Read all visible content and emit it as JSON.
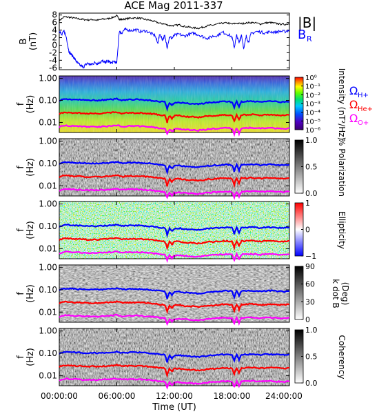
{
  "title": "ACE Mag 2011-337",
  "colors": {
    "total_field": "#000000",
    "radial_field": "#0000ff",
    "gyro_h": "#0000ff",
    "gyro_he": "#ff0000",
    "gyro_o": "#ff00ff"
  },
  "chart_data": [
    {
      "type": "line",
      "panel": "magnetic-field",
      "ylabel": "B",
      "yunit": "(nT)",
      "ylim": [
        -6.5,
        8.5
      ],
      "y_ticks": [
        "8",
        "6",
        "4",
        "2",
        "0",
        "-2",
        "-4",
        "-6"
      ],
      "xlim": [
        0,
        24
      ],
      "legend": [
        {
          "label_main": "|B|",
          "label_sub": "",
          "color": "#000000"
        },
        {
          "label_main": "B",
          "label_sub": "R",
          "color": "#0000ff"
        }
      ],
      "series": [
        {
          "name": "|B|",
          "x": [
            0,
            0.5,
            1,
            1.5,
            2,
            2.5,
            3,
            3.5,
            4,
            4.5,
            5,
            5.5,
            6,
            6.25,
            6.5,
            7,
            7.5,
            8,
            8.5,
            9,
            9.5,
            10,
            10.5,
            11,
            11.5,
            12,
            12.5,
            13,
            13.5,
            14,
            14.5,
            15,
            15.5,
            16,
            16.5,
            17,
            17.5,
            18,
            18.5,
            19,
            19.5,
            20,
            20.5,
            21,
            21.5,
            22,
            22.5,
            23,
            23.5,
            24
          ],
          "y": [
            6.5,
            7.5,
            7.4,
            7.2,
            7.0,
            6.8,
            6.7,
            6.8,
            6.6,
            6.9,
            7.0,
            7.3,
            7.8,
            6.9,
            6.8,
            7.0,
            7.2,
            7.2,
            7.1,
            6.8,
            6.6,
            6.2,
            5.8,
            5.6,
            5.2,
            5.2,
            5.4,
            5.0,
            4.8,
            4.6,
            4.5,
            4.8,
            5.2,
            5.3,
            5.6,
            5.8,
            5.9,
            5.6,
            5.8,
            5.7,
            5.9,
            6.0,
            5.9,
            5.6,
            5.9,
            6.0,
            5.8,
            5.6,
            5.5,
            5.7
          ]
        },
        {
          "name": "B R",
          "x": [
            0,
            0.25,
            0.5,
            0.75,
            1,
            1.25,
            1.5,
            1.75,
            2,
            2.25,
            2.5,
            2.75,
            3,
            3.25,
            3.5,
            3.75,
            4,
            4.25,
            4.5,
            4.75,
            5,
            5.25,
            5.5,
            5.75,
            6,
            6.25,
            6.5,
            6.75,
            7,
            7.5,
            8,
            8.5,
            9,
            9.5,
            10,
            10.25,
            10.5,
            10.75,
            11,
            11.25,
            11.5,
            11.75,
            12,
            12.5,
            13,
            13.5,
            14,
            14.5,
            15,
            15.5,
            16,
            16.5,
            17,
            17.5,
            18,
            18.25,
            18.5,
            18.75,
            19,
            19.25,
            19.5,
            19.75,
            20,
            20.5,
            21,
            21.5,
            22,
            22.5,
            23,
            23.5,
            24
          ],
          "y": [
            4.0,
            2.6,
            3.8,
            2.0,
            -1.6,
            -2.5,
            -3.2,
            -4.2,
            -5.0,
            -5.5,
            -5.8,
            -5.2,
            -4.8,
            -5.2,
            -4.9,
            -4.6,
            -4.9,
            -4.5,
            -4.2,
            -4.6,
            -4.2,
            -4.5,
            -4.7,
            -4.3,
            -4.8,
            3.6,
            3.2,
            4.0,
            4.2,
            3.9,
            4.1,
            3.6,
            3.8,
            3.2,
            2.5,
            0.5,
            3.0,
            1.5,
            2.4,
            -0.5,
            2.2,
            1.8,
            2.6,
            2.9,
            2.4,
            2.8,
            3.2,
            2.8,
            2.2,
            1.8,
            2.4,
            2.6,
            3.4,
            3.0,
            2.2,
            -0.6,
            2.6,
            0.6,
            2.8,
            -1.0,
            2.4,
            0.8,
            3.0,
            3.6,
            3.5,
            3.2,
            3.6,
            3.4,
            3.7,
            3.6,
            4.0
          ]
        }
      ]
    },
    {
      "type": "heatmap",
      "panel": "intensity",
      "ylabel": "f",
      "yunit": "(Hz)",
      "y_ticks": [
        "1.00",
        "0.10",
        "0.01"
      ],
      "colorbar_label": "Intensity (nT²/Hz)",
      "colorbar_ticks": [
        "10⁰",
        "10⁻¹",
        "10⁻²",
        "10⁻³",
        "10⁻⁴",
        "10⁻⁵",
        "10⁻⁶"
      ],
      "colormap": "rainbow",
      "legend": [
        {
          "label_main": "Ω",
          "label_sub": "H+",
          "color": "#0000ff"
        },
        {
          "label_main": "Ω",
          "label_sub": "He+",
          "color": "#ff0000"
        },
        {
          "label_main": "Ω",
          "label_sub": "O+",
          "color": "#ff00ff"
        }
      ]
    },
    {
      "type": "heatmap",
      "panel": "polarization",
      "ylabel": "f",
      "yunit": "(Hz)",
      "y_ticks": [
        "1.00",
        "0.10",
        "0.01"
      ],
      "colorbar_label": "% Polarization",
      "colorbar_ticks": [
        "1.0",
        "0.5",
        "0.0"
      ],
      "colormap": "gray"
    },
    {
      "type": "heatmap",
      "panel": "ellipticity",
      "ylabel": "f",
      "yunit": "(Hz)",
      "y_ticks": [
        "1.00",
        "0.10",
        "0.01"
      ],
      "colorbar_label": "Ellipticity",
      "colorbar_ticks": [
        "1",
        "0",
        "−1"
      ],
      "colormap": "bwr"
    },
    {
      "type": "heatmap",
      "panel": "k-dot-b",
      "ylabel": "f",
      "yunit": "(Hz)",
      "y_ticks": [
        "1.00",
        "0.10",
        "0.01"
      ],
      "colorbar_label": "k dot B",
      "colorbar_unit": "(Deg)",
      "colorbar_ticks": [
        "90",
        "60",
        "30",
        "0"
      ],
      "colormap": "gray"
    },
    {
      "type": "heatmap",
      "panel": "coherency",
      "ylabel": "f",
      "yunit": "(Hz)",
      "y_ticks": [
        "1.00",
        "0.10",
        "0.01"
      ],
      "colorbar_label": "Coherency",
      "colorbar_ticks": [
        "1.0",
        "0.5",
        "0.0"
      ],
      "colormap": "gray"
    }
  ],
  "gyrofrequencies": {
    "x": [
      0,
      0.5,
      1,
      1.5,
      2,
      2.5,
      3,
      3.5,
      4,
      4.5,
      5,
      5.5,
      6,
      6.5,
      7,
      7.5,
      8,
      8.5,
      9,
      9.5,
      10,
      10.5,
      11,
      11.25,
      11.5,
      11.75,
      12,
      12.5,
      13,
      13.5,
      14,
      14.5,
      15,
      15.5,
      16,
      16.5,
      17,
      17.5,
      18,
      18.25,
      18.5,
      18.75,
      19,
      19.5,
      20,
      20.5,
      21,
      21.5,
      22,
      22.5,
      23,
      23.5,
      24
    ],
    "h_plus": [
      0.1,
      0.115,
      0.113,
      0.11,
      0.107,
      0.104,
      0.102,
      0.103,
      0.101,
      0.105,
      0.107,
      0.111,
      0.119,
      0.105,
      0.107,
      0.11,
      0.11,
      0.108,
      0.104,
      0.1,
      0.094,
      0.088,
      0.085,
      0.04,
      0.079,
      0.06,
      0.079,
      0.082,
      0.076,
      0.073,
      0.07,
      0.069,
      0.073,
      0.079,
      0.081,
      0.085,
      0.088,
      0.09,
      0.085,
      0.045,
      0.088,
      0.05,
      0.087,
      0.09,
      0.091,
      0.09,
      0.085,
      0.09,
      0.091,
      0.088,
      0.085,
      0.084,
      0.087
    ],
    "he_plus": [
      0.025,
      0.029,
      0.028,
      0.027,
      0.027,
      0.026,
      0.025,
      0.026,
      0.025,
      0.026,
      0.027,
      0.028,
      0.03,
      0.026,
      0.027,
      0.027,
      0.027,
      0.027,
      0.026,
      0.025,
      0.024,
      0.022,
      0.021,
      0.01,
      0.02,
      0.015,
      0.02,
      0.021,
      0.019,
      0.018,
      0.018,
      0.017,
      0.018,
      0.02,
      0.02,
      0.021,
      0.022,
      0.022,
      0.021,
      0.011,
      0.022,
      0.013,
      0.022,
      0.022,
      0.023,
      0.022,
      0.021,
      0.022,
      0.023,
      0.022,
      0.021,
      0.021,
      0.022
    ],
    "o_plus": [
      0.0062,
      0.0072,
      0.0071,
      0.0069,
      0.0067,
      0.0065,
      0.0064,
      0.0064,
      0.0063,
      0.0066,
      0.0067,
      0.0069,
      0.0074,
      0.0066,
      0.0067,
      0.0069,
      0.0069,
      0.0068,
      0.0065,
      0.0063,
      0.0059,
      0.0055,
      0.0053,
      0.003,
      0.0049,
      0.0038,
      0.0049,
      0.0051,
      0.0048,
      0.0046,
      0.0044,
      0.0043,
      0.0046,
      0.0049,
      0.0051,
      0.0053,
      0.0055,
      0.0056,
      0.0053,
      0.003,
      0.0055,
      0.0032,
      0.0054,
      0.0056,
      0.0057,
      0.0056,
      0.0053,
      0.0056,
      0.0057,
      0.0055,
      0.0053,
      0.0052,
      0.0054
    ]
  },
  "x_axis": {
    "label": "Time (UT)",
    "tick_labels": [
      "00:00:00",
      "06:00:00",
      "12:00:00",
      "18:00:00",
      "24:00:00"
    ],
    "tick_values": [
      0,
      6,
      12,
      18,
      24
    ]
  }
}
